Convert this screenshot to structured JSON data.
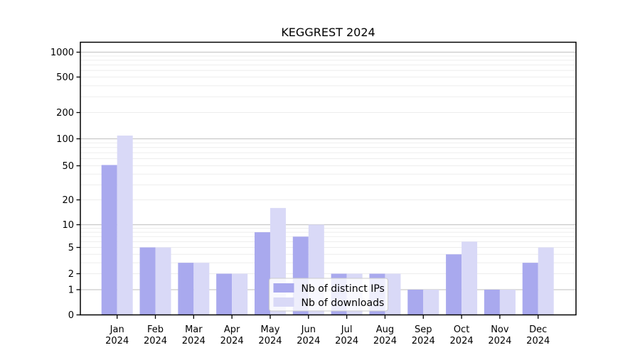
{
  "chart_data": {
    "type": "bar",
    "title": "KEGGREST 2024",
    "categories": [
      "Jan",
      "Feb",
      "Mar",
      "Apr",
      "May",
      "Jun",
      "Jul",
      "Aug",
      "Sep",
      "Oct",
      "Nov",
      "Dec"
    ],
    "year_label": "2024",
    "series": [
      {
        "name": "Nb of distinct IPs",
        "color": "#a9a9ee",
        "values": [
          51,
          5,
          3,
          2,
          8,
          7,
          2,
          2,
          1,
          4,
          1,
          3
        ]
      },
      {
        "name": "Nb of downloads",
        "color": "#d9d9f7",
        "values": [
          109,
          5,
          3,
          2,
          16,
          10,
          2,
          2,
          1,
          6,
          1,
          5
        ]
      }
    ],
    "y_ticks": [
      0,
      1,
      2,
      5,
      10,
      20,
      50,
      100,
      200,
      500,
      1000
    ],
    "yscale": "log1p",
    "ylim": [
      0,
      1000
    ],
    "grid": "horizontal major and minor log gridlines",
    "legend_position": "inside-bottom-center"
  },
  "colors": {
    "background": "#ffffff",
    "axis": "#000000",
    "text": "#000000",
    "grid_major": "#c9c9c9",
    "grid_minor": "#ededed",
    "legend_border": "#cccccc",
    "legend_fill": "rgba(255,255,255,0.8)"
  }
}
